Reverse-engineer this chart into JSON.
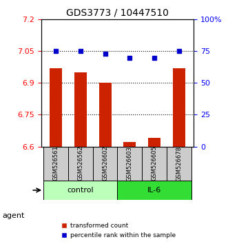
{
  "title": "GDS3773 / 10447510",
  "samples": [
    "GSM526561",
    "GSM526562",
    "GSM526602",
    "GSM526603",
    "GSM526605",
    "GSM526678"
  ],
  "bar_values": [
    6.97,
    6.95,
    6.9,
    6.62,
    6.64,
    6.97
  ],
  "percentile_values": [
    75,
    75,
    73,
    70,
    70,
    75
  ],
  "ylim_left": [
    6.6,
    7.2
  ],
  "ylim_right": [
    0,
    100
  ],
  "yticks_left": [
    6.6,
    6.75,
    6.9,
    7.05,
    7.2
  ],
  "yticks_right": [
    0,
    25,
    50,
    75,
    100
  ],
  "ytick_labels_left": [
    "6.6",
    "6.75",
    "6.9",
    "7.05",
    "7.2"
  ],
  "ytick_labels_right": [
    "0",
    "25",
    "50",
    "75",
    "100%"
  ],
  "hlines": [
    6.75,
    6.9,
    7.05
  ],
  "bar_color": "#cc2200",
  "dot_color": "#0000cc",
  "bar_width": 0.5,
  "groups": [
    {
      "label": "control",
      "indices": [
        0,
        1,
        2
      ],
      "color": "#aaffaa"
    },
    {
      "label": "IL-6",
      "indices": [
        3,
        4,
        5
      ],
      "color": "#22cc22"
    }
  ],
  "agent_label": "agent",
  "legend_items": [
    {
      "label": "transformed count",
      "color": "#cc2200"
    },
    {
      "label": "percentile rank within the sample",
      "color": "#0000cc"
    }
  ],
  "background_color": "#ffffff",
  "plot_bg_color": "#ffffff"
}
